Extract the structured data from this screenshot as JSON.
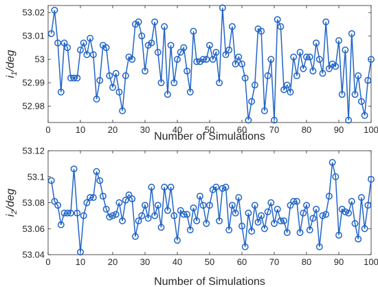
{
  "chart_data": [
    {
      "type": "line",
      "xlabel": "Number of Simulations",
      "ylabel_main": "i",
      "ylabel_sub": "1",
      "ylabel_rest": "/deg",
      "xlim": [
        0,
        100
      ],
      "ylim": [
        52.973,
        53.023
      ],
      "xticks": [
        "0",
        "10",
        "20",
        "30",
        "40",
        "50",
        "60",
        "70",
        "80",
        "90",
        "100"
      ],
      "yticks": [
        "52.98",
        "52.99",
        "53",
        "53.01",
        "53.02"
      ],
      "ytick_values": [
        52.98,
        52.99,
        53.0,
        53.01,
        53.02
      ],
      "grid": false,
      "marker": "circle",
      "color": "#1f63c6",
      "x": [
        1,
        2,
        3,
        4,
        5,
        6,
        7,
        8,
        9,
        10,
        11,
        12,
        13,
        14,
        15,
        16,
        17,
        18,
        19,
        20,
        21,
        22,
        23,
        24,
        25,
        26,
        27,
        28,
        29,
        30,
        31,
        32,
        33,
        34,
        35,
        36,
        37,
        38,
        39,
        40,
        41,
        42,
        43,
        44,
        45,
        46,
        47,
        48,
        49,
        50,
        51,
        52,
        53,
        54,
        55,
        56,
        57,
        58,
        59,
        60,
        61,
        62,
        63,
        64,
        65,
        66,
        67,
        68,
        69,
        70,
        71,
        72,
        73,
        74,
        75,
        76,
        77,
        78,
        79,
        80,
        81,
        82,
        83,
        84,
        85,
        86,
        87,
        88,
        89,
        90,
        91,
        92,
        93,
        94,
        95,
        96,
        97,
        98,
        99,
        100
      ],
      "values": [
        53.011,
        53.021,
        53.007,
        52.986,
        53.007,
        53.005,
        52.992,
        52.992,
        52.992,
        53.004,
        53.007,
        53.002,
        53.009,
        53.002,
        52.983,
        52.991,
        53.006,
        53.005,
        52.993,
        52.988,
        52.994,
        52.986,
        52.978,
        52.993,
        53.001,
        53.0,
        53.015,
        53.016,
        53.01,
        52.995,
        53.006,
        53.007,
        53.016,
        53.003,
        52.99,
        53.014,
        52.985,
        53.006,
        52.99,
        53.0,
        53.003,
        53.005,
        52.995,
        52.986,
        53.012,
        52.999,
        52.999,
        53.0,
        53.0,
        53.006,
        53.0,
        53.003,
        52.99,
        53.022,
        53.002,
        53.004,
        53.014,
        52.998,
        53.001,
        52.998,
        52.992,
        52.974,
        52.982,
        52.989,
        53.013,
        53.012,
        52.978,
        52.993,
        53.0,
        52.974,
        53.017,
        53.014,
        52.987,
        52.989,
        52.986,
        53.001,
        52.993,
        53.003,
        52.996,
        53.001,
        53.001,
        52.995,
        53.007,
        53.0,
        52.994,
        53.016,
        52.996,
        52.998,
        52.997,
        53.008,
        52.985,
        53.004,
        52.974,
        53.011,
        52.985,
        52.993,
        52.982,
        52.976,
        52.991,
        53.0
      ]
    },
    {
      "type": "line",
      "xlabel": "Number of Simulations",
      "ylabel_main": "i",
      "ylabel_sub": "2",
      "ylabel_rest": "/deg",
      "xlim": [
        0,
        100
      ],
      "ylim": [
        53.04,
        53.12
      ],
      "xticks": [
        "0",
        "10",
        "20",
        "30",
        "40",
        "50",
        "60",
        "70",
        "80",
        "90",
        "100"
      ],
      "yticks": [
        "53.04",
        "53.06",
        "53.08",
        "53.1",
        "53.12"
      ],
      "ytick_values": [
        53.04,
        53.06,
        53.08,
        53.1,
        53.12
      ],
      "grid": false,
      "marker": "circle",
      "color": "#1f63c6",
      "x": [
        1,
        2,
        3,
        4,
        5,
        6,
        7,
        8,
        9,
        10,
        11,
        12,
        13,
        14,
        15,
        16,
        17,
        18,
        19,
        20,
        21,
        22,
        23,
        24,
        25,
        26,
        27,
        28,
        29,
        30,
        31,
        32,
        33,
        34,
        35,
        36,
        37,
        38,
        39,
        40,
        41,
        42,
        43,
        44,
        45,
        46,
        47,
        48,
        49,
        50,
        51,
        52,
        53,
        54,
        55,
        56,
        57,
        58,
        59,
        60,
        61,
        62,
        63,
        64,
        65,
        66,
        67,
        68,
        69,
        70,
        71,
        72,
        73,
        74,
        75,
        76,
        77,
        78,
        79,
        80,
        81,
        82,
        83,
        84,
        85,
        86,
        87,
        88,
        89,
        90,
        91,
        92,
        93,
        94,
        95,
        96,
        97,
        98,
        99,
        100
      ],
      "values": [
        53.097,
        53.081,
        53.078,
        53.063,
        53.072,
        53.072,
        53.072,
        53.106,
        53.072,
        53.042,
        53.07,
        53.08,
        53.084,
        53.084,
        53.104,
        53.097,
        53.085,
        53.075,
        53.069,
        53.07,
        53.071,
        53.08,
        53.066,
        53.082,
        53.086,
        53.083,
        53.054,
        53.066,
        53.07,
        53.078,
        53.068,
        53.092,
        53.07,
        53.078,
        53.061,
        53.092,
        53.074,
        53.092,
        53.07,
        53.051,
        53.074,
        53.071,
        53.071,
        53.059,
        53.076,
        53.066,
        53.085,
        53.078,
        53.064,
        53.078,
        53.09,
        53.092,
        53.066,
        53.091,
        53.092,
        53.059,
        53.078,
        53.072,
        53.084,
        53.062,
        53.046,
        53.072,
        53.058,
        53.078,
        53.065,
        53.07,
        53.06,
        53.073,
        53.08,
        53.064,
        53.075,
        53.066,
        53.066,
        53.057,
        53.078,
        53.081,
        53.081,
        53.057,
        53.072,
        53.078,
        53.059,
        53.068,
        53.075,
        53.046,
        53.07,
        53.071,
        53.085,
        53.111,
        53.1,
        53.055,
        53.075,
        53.073,
        53.072,
        53.081,
        53.064,
        53.052,
        53.084,
        53.06,
        53.078,
        53.098
      ]
    }
  ]
}
